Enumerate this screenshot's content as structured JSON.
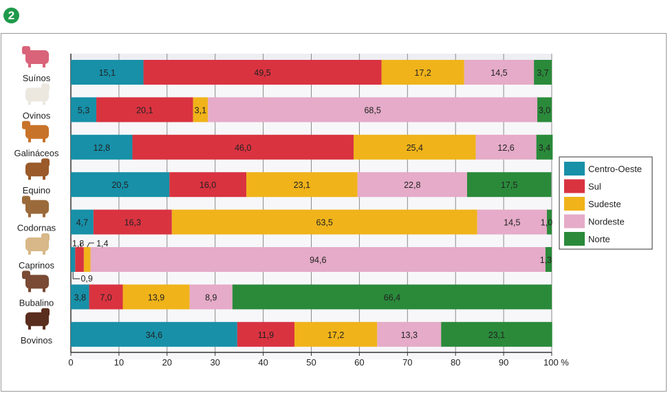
{
  "badge": "2",
  "chart_data": {
    "type": "bar",
    "orientation": "horizontal",
    "stacked": true,
    "categories": [
      "Suínos",
      "Ovinos",
      "Galináceos",
      "Equino",
      "Codornas",
      "Caprinos",
      "Bubalino",
      "Bovinos"
    ],
    "series": [
      {
        "name": "Centro-Oeste",
        "color": "#1790a8",
        "values": [
          15.1,
          5.3,
          12.8,
          20.5,
          4.7,
          0.9,
          3.8,
          34.6
        ],
        "labels": [
          "15,1",
          "5,3",
          "12,8",
          "20,5",
          "4,7",
          "0,9",
          "3,8",
          "34,6"
        ]
      },
      {
        "name": "Sul",
        "color": "#d93340",
        "values": [
          49.5,
          20.1,
          46.0,
          16.0,
          16.3,
          1.8,
          7.0,
          11.9
        ],
        "labels": [
          "49,5",
          "20,1",
          "46,0",
          "16,0",
          "16,3",
          "1,8",
          "7,0",
          "11,9"
        ]
      },
      {
        "name": "Sudeste",
        "color": "#f0b31a",
        "values": [
          17.2,
          3.1,
          25.4,
          23.1,
          63.5,
          1.4,
          13.9,
          17.2
        ],
        "labels": [
          "17,2",
          "3,1",
          "25,4",
          "23,1",
          "63,5",
          "1,4",
          "13,9",
          "17,2"
        ]
      },
      {
        "name": "Nordeste",
        "color": "#e5abc8",
        "values": [
          14.5,
          68.5,
          12.6,
          22.8,
          14.5,
          94.6,
          8.9,
          13.3
        ],
        "labels": [
          "14,5",
          "68,5",
          "12,6",
          "22,8",
          "14,5",
          "94,6",
          "8,9",
          "13,3"
        ]
      },
      {
        "name": "Norte",
        "color": "#2a8a3a",
        "values": [
          3.7,
          3.0,
          3.4,
          17.5,
          1.0,
          1.3,
          66.4,
          23.1
        ],
        "labels": [
          "3,7",
          "3,0",
          "3,4",
          "17,5",
          "1,0",
          "1,3",
          "66,4",
          "23,1"
        ]
      }
    ],
    "xlim": [
      0,
      100
    ],
    "xticks": [
      "0",
      "10",
      "20",
      "30",
      "40",
      "50",
      "60",
      "70",
      "80",
      "90",
      "100 %"
    ],
    "grid": true,
    "legend_position": "right",
    "category_icons": [
      "pig-icon",
      "sheep-icon",
      "chicken-icon",
      "horse-icon",
      "quail-icon",
      "goat-icon",
      "buffalo-icon",
      "cow-icon"
    ]
  }
}
